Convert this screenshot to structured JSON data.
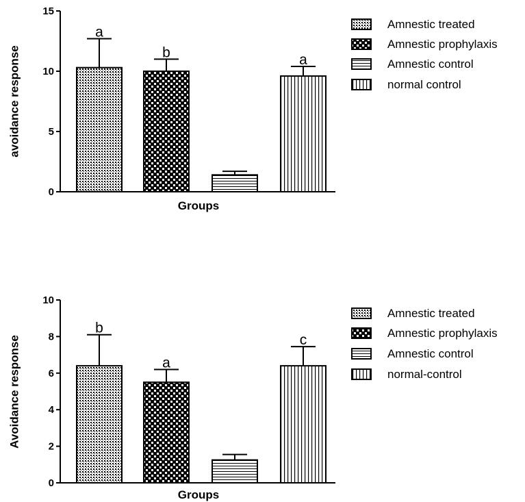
{
  "chart_data": [
    {
      "type": "bar",
      "xlabel": "Groups",
      "ylabel": "avoidance response",
      "ylim": [
        0,
        15
      ],
      "yticks": [
        "0",
        "5",
        "10",
        "15"
      ],
      "grid": false,
      "legend_position": "right",
      "series": [
        {
          "name": "Amnestic treated",
          "value": 10.3,
          "error": 2.4,
          "label": "a",
          "pattern": "dots"
        },
        {
          "name": "Amnestic prophylaxis",
          "value": 10.0,
          "error": 1.0,
          "label": "b",
          "pattern": "checker"
        },
        {
          "name": "Amnestic control",
          "value": 1.4,
          "error": 0.3,
          "label": "",
          "pattern": "hlines"
        },
        {
          "name": "normal control",
          "value": 9.6,
          "error": 0.8,
          "label": "a",
          "pattern": "vlines"
        }
      ]
    },
    {
      "type": "bar",
      "xlabel": "Groups",
      "ylabel": "Avoidance response",
      "ylim": [
        0,
        10
      ],
      "yticks": [
        "0",
        "2",
        "4",
        "6",
        "8",
        "10"
      ],
      "grid": false,
      "legend_position": "right",
      "series": [
        {
          "name": "Amnestic treated",
          "value": 6.4,
          "error": 1.7,
          "label": "b",
          "pattern": "dots"
        },
        {
          "name": "Amnestic prophylaxis",
          "value": 5.5,
          "error": 0.7,
          "label": "a",
          "pattern": "checker"
        },
        {
          "name": "Amnestic control",
          "value": 1.25,
          "error": 0.3,
          "label": "",
          "pattern": "hlines"
        },
        {
          "name": "normal-control",
          "value": 6.4,
          "error": 1.05,
          "label": "c",
          "pattern": "vlines"
        }
      ]
    }
  ]
}
